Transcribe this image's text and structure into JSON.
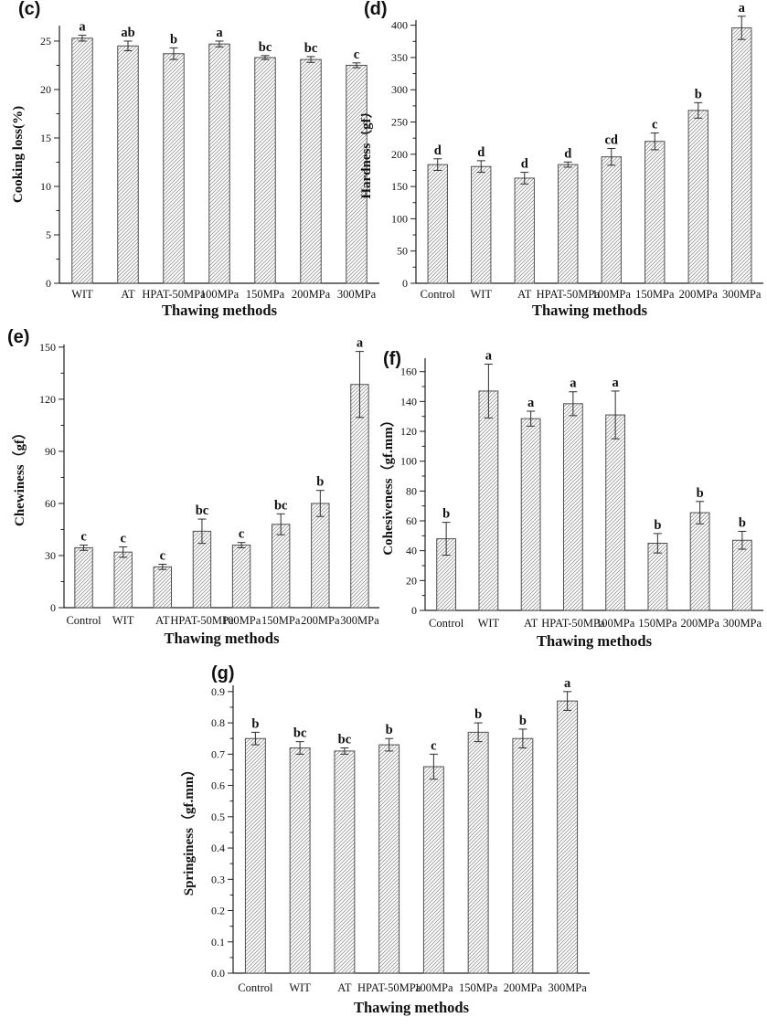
{
  "style": {
    "bar_fill": "#ffffff",
    "hatch_color": "#9c9c9c",
    "bar_stroke": "#4f4f4f",
    "axis_color": "#1f1f1f",
    "error_color": "#2b2b2b",
    "text_color": "#111111"
  },
  "chart_data": [
    {
      "id": "c",
      "panel_label": "(c)",
      "type": "bar",
      "xlabel": "Thawing methods",
      "ylabel": "Cooking loss(%)",
      "categories": [
        "WIT",
        "AT",
        "HPAT-50MPa",
        "100MPa",
        "150MPa",
        "200MPa",
        "300MPa"
      ],
      "values": [
        25.3,
        24.5,
        23.7,
        24.7,
        23.3,
        23.1,
        22.5
      ],
      "errors": [
        0.3,
        0.5,
        0.6,
        0.3,
        0.2,
        0.3,
        0.25
      ],
      "sig_letters": [
        "a",
        "ab",
        "b",
        "a",
        "bc",
        "bc",
        "c"
      ],
      "ylim": [
        0,
        26.6
      ],
      "ytick_step": 5,
      "yminor_step": 2.5,
      "ytick_decimals": 0,
      "grid": false,
      "legend": "none"
    },
    {
      "id": "d",
      "panel_label": "(d)",
      "type": "bar",
      "xlabel": "Thawing methods",
      "ylabel": "Hardness（gf）",
      "categories": [
        "Control",
        "WIT",
        "AT",
        "HPAT-50MPa",
        "100MPa",
        "150MPa",
        "200MPa",
        "300MPa"
      ],
      "values": [
        184,
        181,
        163,
        184,
        196,
        220,
        268,
        396
      ],
      "errors": [
        9,
        9,
        9,
        4,
        13,
        13,
        12,
        18
      ],
      "sig_letters": [
        "d",
        "d",
        "d",
        "d",
        "cd",
        "c",
        "b",
        "a"
      ],
      "ylim": [
        0,
        408
      ],
      "ytick_step": 50,
      "yminor_step": 25,
      "ytick_decimals": 0,
      "grid": false,
      "legend": "none"
    },
    {
      "id": "e",
      "panel_label": "(e)",
      "type": "bar",
      "xlabel": "Thawing methods",
      "ylabel": "Chewiness（gf）",
      "categories": [
        "Control",
        "WIT",
        "AT",
        "HPAT-50MPa",
        "100MPa",
        "150MPa",
        "200MPa",
        "300MPa"
      ],
      "values": [
        34.5,
        32,
        23.5,
        44,
        36,
        48,
        60,
        128.5
      ],
      "errors": [
        1.5,
        3,
        1.5,
        7,
        1.5,
        6,
        7.5,
        19
      ],
      "sig_letters": [
        "c",
        "c",
        "c",
        "bc",
        "c",
        "bc",
        "b",
        "a"
      ],
      "ylim": [
        0,
        151.5
      ],
      "ytick_step": 30,
      "yminor_step": 15,
      "ytick_decimals": 0,
      "grid": false,
      "legend": "none"
    },
    {
      "id": "f",
      "panel_label": "(f)",
      "type": "bar",
      "xlabel": "Thawing methods",
      "ylabel": "Cohesiveness（gf.mm）",
      "categories": [
        "Control",
        "WIT",
        "AT",
        "HPAT-50MPa",
        "100MPa",
        "150MPa",
        "200MPa",
        "300MPa"
      ],
      "values": [
        48,
        147,
        128.5,
        138.5,
        131,
        45,
        65.5,
        47
      ],
      "errors": [
        11,
        18,
        5,
        8,
        16,
        6.5,
        7.5,
        6
      ],
      "sig_letters": [
        "b",
        "a",
        "a",
        "a",
        "a",
        "b",
        "b",
        "b"
      ],
      "ylim": [
        0,
        169
      ],
      "ytick_step": 20,
      "yminor_step": 10,
      "ytick_decimals": 0,
      "grid": false,
      "legend": "none"
    },
    {
      "id": "g",
      "panel_label": "(g)",
      "type": "bar",
      "xlabel": "Thawing methods",
      "ylabel": "Springiness（gf.mm）",
      "categories": [
        "Control",
        "WIT",
        "AT",
        "HPAT-50MPa",
        "100MPa",
        "150MPa",
        "200MPa",
        "300MPa"
      ],
      "values": [
        0.75,
        0.72,
        0.71,
        0.73,
        0.66,
        0.77,
        0.75,
        0.87
      ],
      "errors": [
        0.02,
        0.02,
        0.01,
        0.02,
        0.04,
        0.03,
        0.03,
        0.03
      ],
      "sig_letters": [
        "b",
        "bc",
        "bc",
        "b",
        "c",
        "b",
        "b",
        "a"
      ],
      "ylim": [
        0,
        0.92
      ],
      "ytick_step": 0.1,
      "yminor_step": 0.05,
      "ytick_decimals": 1,
      "grid": false,
      "legend": "none"
    }
  ]
}
